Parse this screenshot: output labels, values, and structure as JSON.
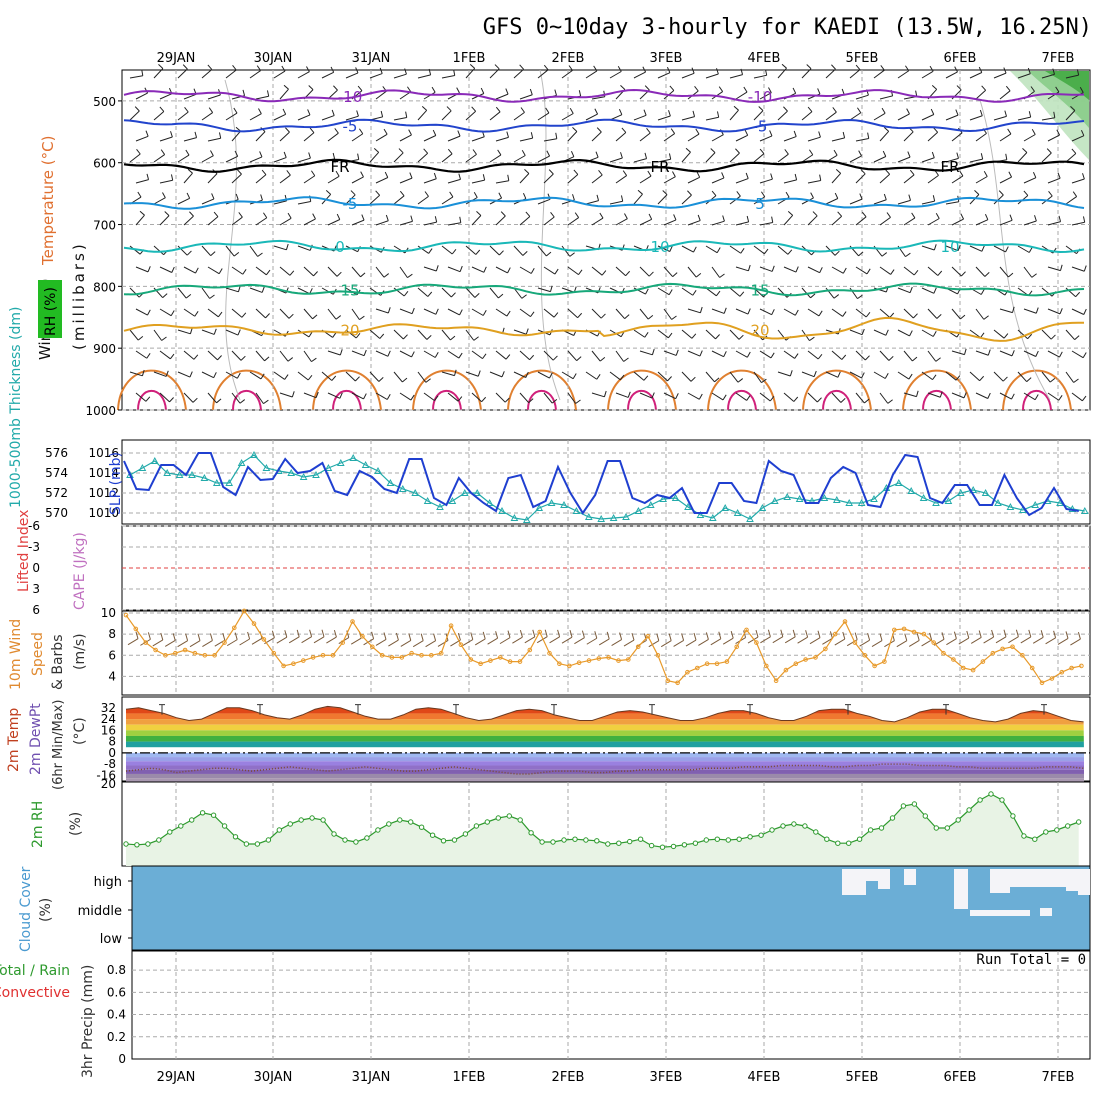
{
  "title": "GFS 0~10day 3-hourly for KAEDI (13.5W, 16.25N)",
  "dates": [
    "29JAN",
    "30JAN",
    "31JAN",
    "1FEB",
    "2FEB",
    "3FEB",
    "4FEB",
    "5FEB",
    "6FEB",
    "7FEB"
  ],
  "colors": {
    "grid": "#aaaaaa",
    "slp": "#1f3fd0",
    "thick": "#22aaaa",
    "wind": "#e89a2a",
    "rh": "#2e9a2e",
    "rh_fill": "#e8f3e5",
    "cloud": "#6baed6",
    "cape_zero": "#e04040",
    "temp_warm": "#e07020",
    "temp_cold": "#8060c0"
  },
  "chart_data": [
    {
      "type": "line",
      "name": "upper-air",
      "ylabel_wind": "Wind (m/s)",
      "ylabel_temp": "Temperature (°C)",
      "ylabel_rh": "RH (%)",
      "ylabel_p": "(millibars)",
      "yticks": [
        500,
        600,
        700,
        800,
        900,
        1000
      ],
      "ylim": [
        1000,
        450
      ],
      "contours": [
        {
          "label": "-10",
          "level": 492,
          "color": "#8a2ab8",
          "labels": [
            "-10",
            "-10"
          ]
        },
        {
          "label": "-5",
          "level": 540,
          "color": "#2244cc",
          "labels": [
            "-5",
            "-5"
          ]
        },
        {
          "label": "FR",
          "level": 605,
          "color": "#000000",
          "labels": [
            "FR",
            "FR",
            "FR"
          ]
        },
        {
          "label": "-5",
          "level": 665,
          "color": "#1a90d8",
          "labels": [
            "-5",
            "5"
          ]
        },
        {
          "label": "10",
          "level": 735,
          "color": "#1ab8b8",
          "labels": [
            "0",
            "10",
            "10"
          ]
        },
        {
          "label": "15",
          "level": 805,
          "color": "#17a87a",
          "labels": [
            "15",
            "15"
          ]
        },
        {
          "label": "20",
          "level": 870,
          "color": "#e0a020",
          "labels": [
            "20",
            "20"
          ]
        }
      ]
    },
    {
      "type": "line",
      "name": "slp-thickness",
      "ylabel_left": "1000-500mb Thickness (dm)",
      "ylabel_right": "SLP (mb)",
      "thick_ticks": [
        "576",
        "574",
        "572",
        "570"
      ],
      "slp_ticks": [
        "1016",
        "1014",
        "1012",
        "1010"
      ],
      "slp": [
        1015.2,
        1012.4,
        1012.3,
        1014.8,
        1014.8,
        1013.8,
        1016.0,
        1016.0,
        1012.6,
        1011.8,
        1014.6,
        1013.3,
        1013.4,
        1015.4,
        1014.0,
        1014.2,
        1015.0,
        1012.2,
        1011.8,
        1014.2,
        1013.6,
        1012.4,
        1012.0,
        1015.4,
        1015.4,
        1011.5,
        1010.8,
        1013.5,
        1012.0,
        1011.0,
        1010.2,
        1013.5,
        1013.8,
        1010.6,
        1011.2,
        1014.6,
        1012.0,
        1010.0,
        1011.8,
        1015.2,
        1015.2,
        1011.5,
        1011.0,
        1011.8,
        1011.5,
        1012.5,
        1010.0,
        1010.0,
        1013.0,
        1013.0,
        1011.2,
        1011.0,
        1015.2,
        1014.2,
        1013.8,
        1011.0,
        1011.0,
        1013.5,
        1014.6,
        1014.0,
        1010.8,
        1010.6,
        1013.8,
        1015.8,
        1015.6,
        1011.5,
        1011.0,
        1012.8,
        1012.8,
        1010.8,
        1010.8,
        1013.8,
        1011.5,
        1009.8,
        1010.5,
        1012.5,
        1010.4,
        1010.2
      ],
      "thick": [
        573.8,
        574.5,
        575.2,
        574.0,
        573.8,
        573.8,
        573.5,
        573.0,
        573.0,
        575.0,
        575.8,
        574.5,
        574.2,
        574.0,
        573.6,
        573.8,
        574.5,
        575.0,
        575.5,
        574.8,
        574.2,
        573.0,
        572.4,
        572.0,
        571.2,
        570.6,
        571.2,
        572.0,
        572.0,
        571.0,
        570.2,
        569.5,
        569.3,
        570.5,
        571.0,
        570.8,
        570.2,
        569.6,
        569.4,
        569.5,
        569.6,
        570.2,
        570.8,
        571.4,
        571.5,
        570.6,
        569.8,
        569.5,
        570.5,
        570.0,
        569.4,
        570.5,
        571.2,
        571.6,
        571.4,
        571.2,
        571.5,
        571.3,
        571.0,
        571.0,
        571.4,
        572.5,
        573.0,
        572.2,
        571.5,
        571.0,
        571.2,
        572.0,
        572.3,
        572.0,
        571.0,
        570.6,
        570.3,
        570.8,
        571.2,
        571.0,
        570.4,
        570.2
      ]
    },
    {
      "type": "line",
      "name": "cape-li",
      "ylabel_left": "Lifted Index",
      "ylabel_right": "CAPE (J/kg)",
      "yticks": [
        "-6",
        "-3",
        "0",
        "3",
        "6"
      ],
      "li": [],
      "cape": []
    },
    {
      "type": "line",
      "name": "10m-wind",
      "ylabel": "10m Wind Speed (m/s) & Barbs",
      "yticks": [
        "10",
        "8",
        "6",
        "4"
      ],
      "values": [
        9.8,
        8.5,
        7.2,
        6.5,
        6.0,
        6.2,
        6.5,
        6.2,
        6.0,
        6.0,
        7.2,
        8.6,
        10.2,
        9.0,
        7.5,
        6.2,
        5.0,
        5.2,
        5.5,
        5.8,
        6.0,
        6.0,
        7.2,
        9.2,
        7.8,
        6.8,
        6.0,
        5.8,
        5.8,
        6.2,
        6.0,
        6.0,
        6.2,
        8.8,
        7.0,
        5.6,
        5.2,
        5.5,
        5.8,
        5.4,
        5.4,
        6.5,
        8.2,
        6.2,
        5.2,
        5.0,
        5.3,
        5.5,
        5.7,
        5.8,
        5.5,
        5.6,
        6.8,
        7.8,
        6.0,
        3.6,
        3.4,
        4.4,
        4.8,
        5.2,
        5.2,
        5.4,
        6.8,
        8.4,
        7.2,
        5.0,
        3.6,
        4.6,
        5.2,
        5.6,
        5.8,
        6.6,
        8.0,
        9.2,
        7.2,
        6.0,
        5.0,
        5.4,
        8.4,
        8.5,
        8.2,
        8.0,
        7.2,
        6.2,
        5.6,
        4.8,
        4.6,
        5.4,
        6.2,
        6.6,
        6.8,
        6.0,
        4.8,
        3.4,
        3.8,
        4.4,
        4.8,
        5.0,
        5.2
      ],
      "barb_speed": 7
    },
    {
      "type": "area",
      "name": "2m-temp",
      "ylabel": "2m Temp / 2m DewPt / (6hr Min/Max) (°C)",
      "yticks": [
        "32",
        "24",
        "16",
        "8",
        "0",
        "-8",
        "-16"
      ],
      "temp": [
        31,
        32,
        30,
        28,
        25,
        23,
        24,
        28,
        32,
        32,
        30,
        27,
        25,
        24,
        27,
        31,
        33,
        32,
        29,
        26,
        24,
        24,
        27,
        31,
        32,
        31,
        28,
        25,
        23,
        24,
        27,
        30,
        31,
        30,
        27,
        25,
        23,
        23,
        26,
        29,
        30,
        29,
        27,
        25,
        23,
        23,
        25,
        28,
        30,
        30,
        28,
        25,
        23,
        23,
        26,
        30,
        31,
        31,
        28,
        26,
        23,
        22,
        25,
        29,
        31,
        31,
        28,
        25,
        23,
        22,
        24,
        28,
        30,
        29,
        26,
        23,
        22
      ],
      "dewpt": [
        -13,
        -12,
        -11,
        -12,
        -14,
        -13,
        -12,
        -11,
        -11,
        -12,
        -13,
        -12,
        -11,
        -10,
        -11,
        -12,
        -13,
        -12,
        -11,
        -10,
        -11,
        -12,
        -13,
        -13,
        -12,
        -11,
        -10,
        -11,
        -12,
        -13,
        -14,
        -15,
        -15,
        -14,
        -13,
        -13,
        -13,
        -14,
        -14,
        -13,
        -13,
        -12,
        -12,
        -12,
        -12,
        -12,
        -11,
        -11,
        -11,
        -10,
        -10,
        -10,
        -9,
        -9,
        -9,
        -9,
        -10,
        -10,
        -9,
        -9,
        -8,
        -8,
        -8,
        -9,
        -9,
        -9,
        -10,
        -10,
        -11,
        -11,
        -11,
        -11,
        -11,
        -10,
        -10,
        -10,
        -11
      ]
    },
    {
      "type": "area",
      "name": "2m-rh",
      "ylabel": "2m RH (%)",
      "ytick": "20",
      "values": [
        5.0,
        4.8,
        5.0,
        6.0,
        8.0,
        9.5,
        11.0,
        12.8,
        12.2,
        9.5,
        6.8,
        5.0,
        5.0,
        6.0,
        8.5,
        10.0,
        11.0,
        11.5,
        11.0,
        7.5,
        6.0,
        5.5,
        6.5,
        8.5,
        10.0,
        11.0,
        10.5,
        9.2,
        7.2,
        5.8,
        6.0,
        7.5,
        9.5,
        10.5,
        11.5,
        12.0,
        11.0,
        7.8,
        5.5,
        5.5,
        6.0,
        6.2,
        6.0,
        5.8,
        5.0,
        5.2,
        5.6,
        6.2,
        4.6,
        4.2,
        4.4,
        4.8,
        5.2,
        6.0,
        6.2,
        6.0,
        6.2,
        6.8,
        7.2,
        8.5,
        9.5,
        10.0,
        9.5,
        8.0,
        6.2,
        5.2,
        5.2,
        6.2,
        8.5,
        9.0,
        11.5,
        14.5,
        15.0,
        12.0,
        9.0,
        9.0,
        11.0,
        13.5,
        16.0,
        17.5,
        16.0,
        12.0,
        7.0,
        6.2,
        8.0,
        8.5,
        9.5,
        10.5
      ]
    },
    {
      "type": "heatmap",
      "name": "cloud-cover",
      "ylabel": "Cloud Cover (%)",
      "levels": [
        "high",
        "middle",
        "low"
      ]
    },
    {
      "type": "bar",
      "name": "precip",
      "ylabel": "3hr Precip (mm)",
      "legend_total_rain": "Total / Rain",
      "legend_convective": "Convective",
      "yticks": [
        "0.8",
        "0.6",
        "0.4",
        "0.2",
        "0"
      ],
      "run_total": "Run Total = 0",
      "values": []
    }
  ]
}
